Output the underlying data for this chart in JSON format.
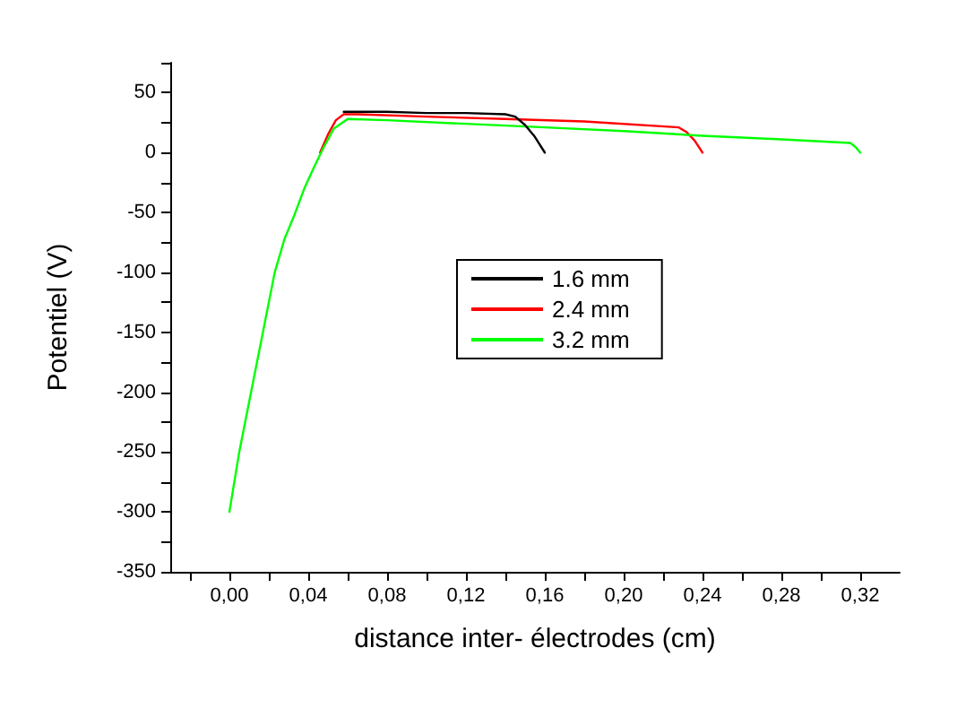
{
  "chart_data": {
    "type": "line",
    "xlabel": "distance inter- électrodes (cm)",
    "ylabel": "Potentiel (V)",
    "series": [
      {
        "name": "1.6 mm",
        "color": "#000000",
        "x": [
          0.058,
          0.065,
          0.08,
          0.1,
          0.12,
          0.14,
          0.145,
          0.15,
          0.155,
          0.16
        ],
        "values": [
          34,
          34,
          34,
          33,
          33,
          32,
          30,
          23,
          13,
          0
        ]
      },
      {
        "name": "2.4 mm",
        "color": "#ff0000",
        "x": [
          0.046,
          0.05,
          0.054,
          0.058,
          0.065,
          0.1,
          0.14,
          0.18,
          0.228,
          0.232,
          0.236,
          0.24
        ],
        "values": [
          0,
          15,
          27,
          32,
          32,
          30,
          28,
          26,
          21,
          17,
          10,
          0
        ]
      },
      {
        "name": "3.2 mm",
        "color": "#00ff00",
        "x": [
          0,
          0.005,
          0.011,
          0.017,
          0.023,
          0.028,
          0.033,
          0.038,
          0.043,
          0.048,
          0.053,
          0.06,
          0.08,
          0.12,
          0.16,
          0.2,
          0.24,
          0.28,
          0.315,
          0.318,
          0.32
        ],
        "values": [
          -300,
          -250,
          -200,
          -150,
          -100,
          -72,
          -52,
          -30,
          -12,
          5,
          20,
          28,
          27,
          24,
          21,
          18,
          14,
          11,
          8,
          4,
          0
        ]
      }
    ],
    "xlim": [
      -0.03,
      0.34
    ],
    "xticks": [
      {
        "value": -0.02,
        "label": null
      },
      {
        "value": 0,
        "label": "0,00"
      },
      {
        "value": 0.02,
        "label": null
      },
      {
        "value": 0.04,
        "label": "0,04"
      },
      {
        "value": 0.06,
        "label": null
      },
      {
        "value": 0.08,
        "label": "0,08"
      },
      {
        "value": 0.1,
        "label": null
      },
      {
        "value": 0.12,
        "label": "0,12"
      },
      {
        "value": 0.14,
        "label": null
      },
      {
        "value": 0.16,
        "label": "0,16"
      },
      {
        "value": 0.18,
        "label": null
      },
      {
        "value": 0.2,
        "label": "0,20"
      },
      {
        "value": 0.22,
        "label": null
      },
      {
        "value": 0.24,
        "label": "0,24"
      },
      {
        "value": 0.26,
        "label": null
      },
      {
        "value": 0.28,
        "label": "0,28"
      },
      {
        "value": 0.3,
        "label": null
      },
      {
        "value": 0.32,
        "label": "0,32"
      }
    ],
    "ylim": [
      -350,
      75
    ],
    "yticks": [
      -350,
      {
        "value": -325,
        "label": null
      },
      -300,
      {
        "value": -275,
        "label": null
      },
      -250,
      {
        "value": -225,
        "label": null
      },
      -200,
      {
        "value": -175,
        "label": null
      },
      -150,
      {
        "value": -125,
        "label": null
      },
      -100,
      {
        "value": -75,
        "label": null
      },
      -50,
      {
        "value": -25,
        "label": null
      },
      0,
      {
        "value": 25,
        "label": null
      },
      50,
      {
        "value": 75,
        "label": null
      }
    ],
    "grid": false,
    "legend": "center",
    "marker": "none",
    "line_style": "solid"
  }
}
